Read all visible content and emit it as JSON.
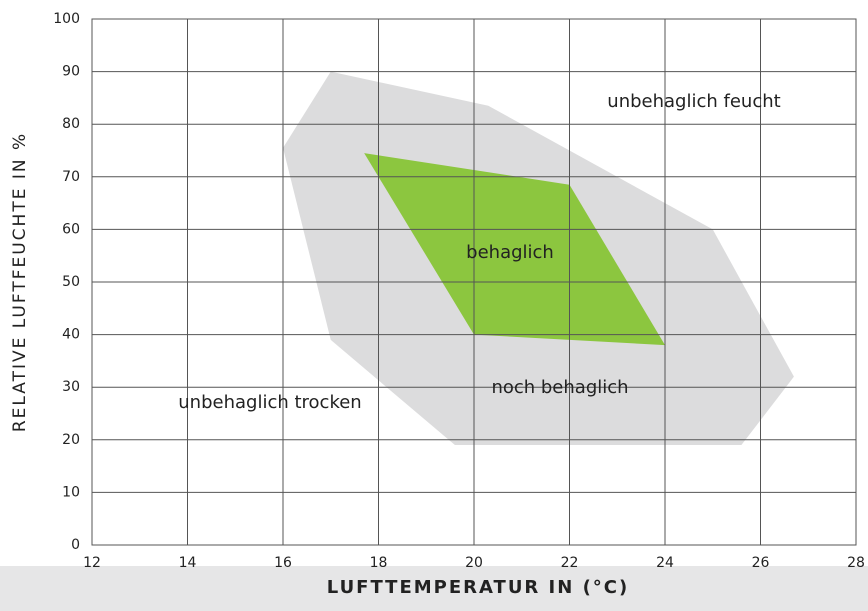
{
  "chart_data": {
    "type": "polygon",
    "xlabel": "LUFTTEMPERATUR IN (°C)",
    "ylabel": "RELATIVE LUFTFEUCHTE IN %",
    "series": [
      {
        "name": "noch behaglich",
        "color": "#dcdcdd",
        "x": [
          17,
          20.3,
          25,
          26.7,
          25.6,
          19.6,
          17,
          16
        ],
        "values": [
          90,
          83.5,
          60,
          32,
          19,
          19,
          39,
          75.5
        ]
      },
      {
        "name": "behaglich",
        "color": "#8cc63f",
        "x": [
          17.7,
          22,
          24,
          20
        ],
        "values": [
          74.5,
          68.5,
          38,
          40
        ]
      }
    ],
    "annotations": [
      "unbehaglich feucht",
      "unbehaglich trocken"
    ],
    "xlim": [
      12,
      28
    ],
    "xticks": [
      12,
      14,
      16,
      18,
      20,
      22,
      24,
      26,
      28
    ],
    "ylim": [
      0,
      100
    ],
    "yticks": [
      0,
      10,
      20,
      30,
      40,
      50,
      60,
      70,
      80,
      90,
      100
    ],
    "grid": true
  }
}
